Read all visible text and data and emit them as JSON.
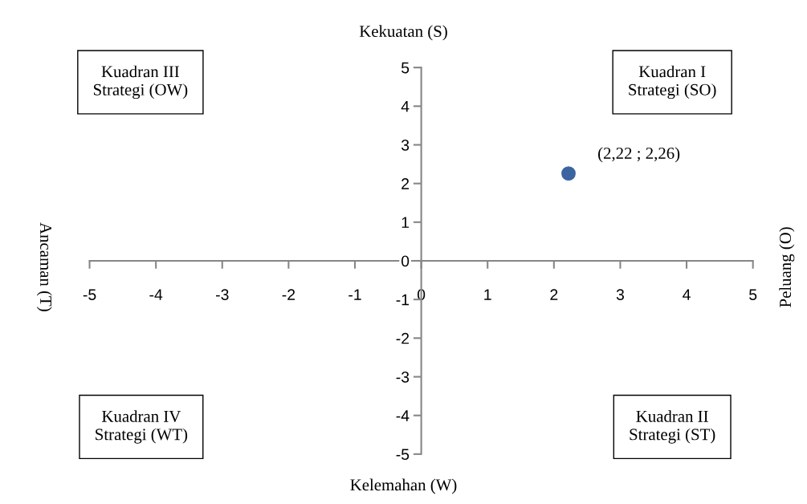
{
  "chart_data": {
    "type": "scatter",
    "title": "Kekuatan (S)",
    "xlabel": "Kelemahan (W)",
    "ylabel": "Ancaman (T)",
    "y2label": "Peluang (O)",
    "x": [
      2.22
    ],
    "series": [
      {
        "color": "#3b64a0",
        "values": [
          2.26
        ]
      }
    ],
    "marker": "circle",
    "xlim": [
      -5,
      5
    ],
    "ylim": [
      -5,
      5
    ],
    "xticks": [
      -5,
      -4,
      -3,
      -2,
      -1,
      0,
      1,
      2,
      3,
      4,
      5
    ],
    "yticks": [
      -5,
      -4,
      -3,
      -2,
      -1,
      0,
      1,
      2,
      3,
      4,
      5
    ],
    "grid": false,
    "legend": false,
    "annotations": [
      {
        "text": "(2,22 ; 2,26)",
        "x": 2.22,
        "y": 2.26
      },
      "Kuadran III\nStrategi (OW)",
      "Kuadran I\nStrategi (SO)",
      "Kuadran IV\nStrategi (WT)",
      "Kuadran II\nStrategi (ST)"
    ]
  }
}
